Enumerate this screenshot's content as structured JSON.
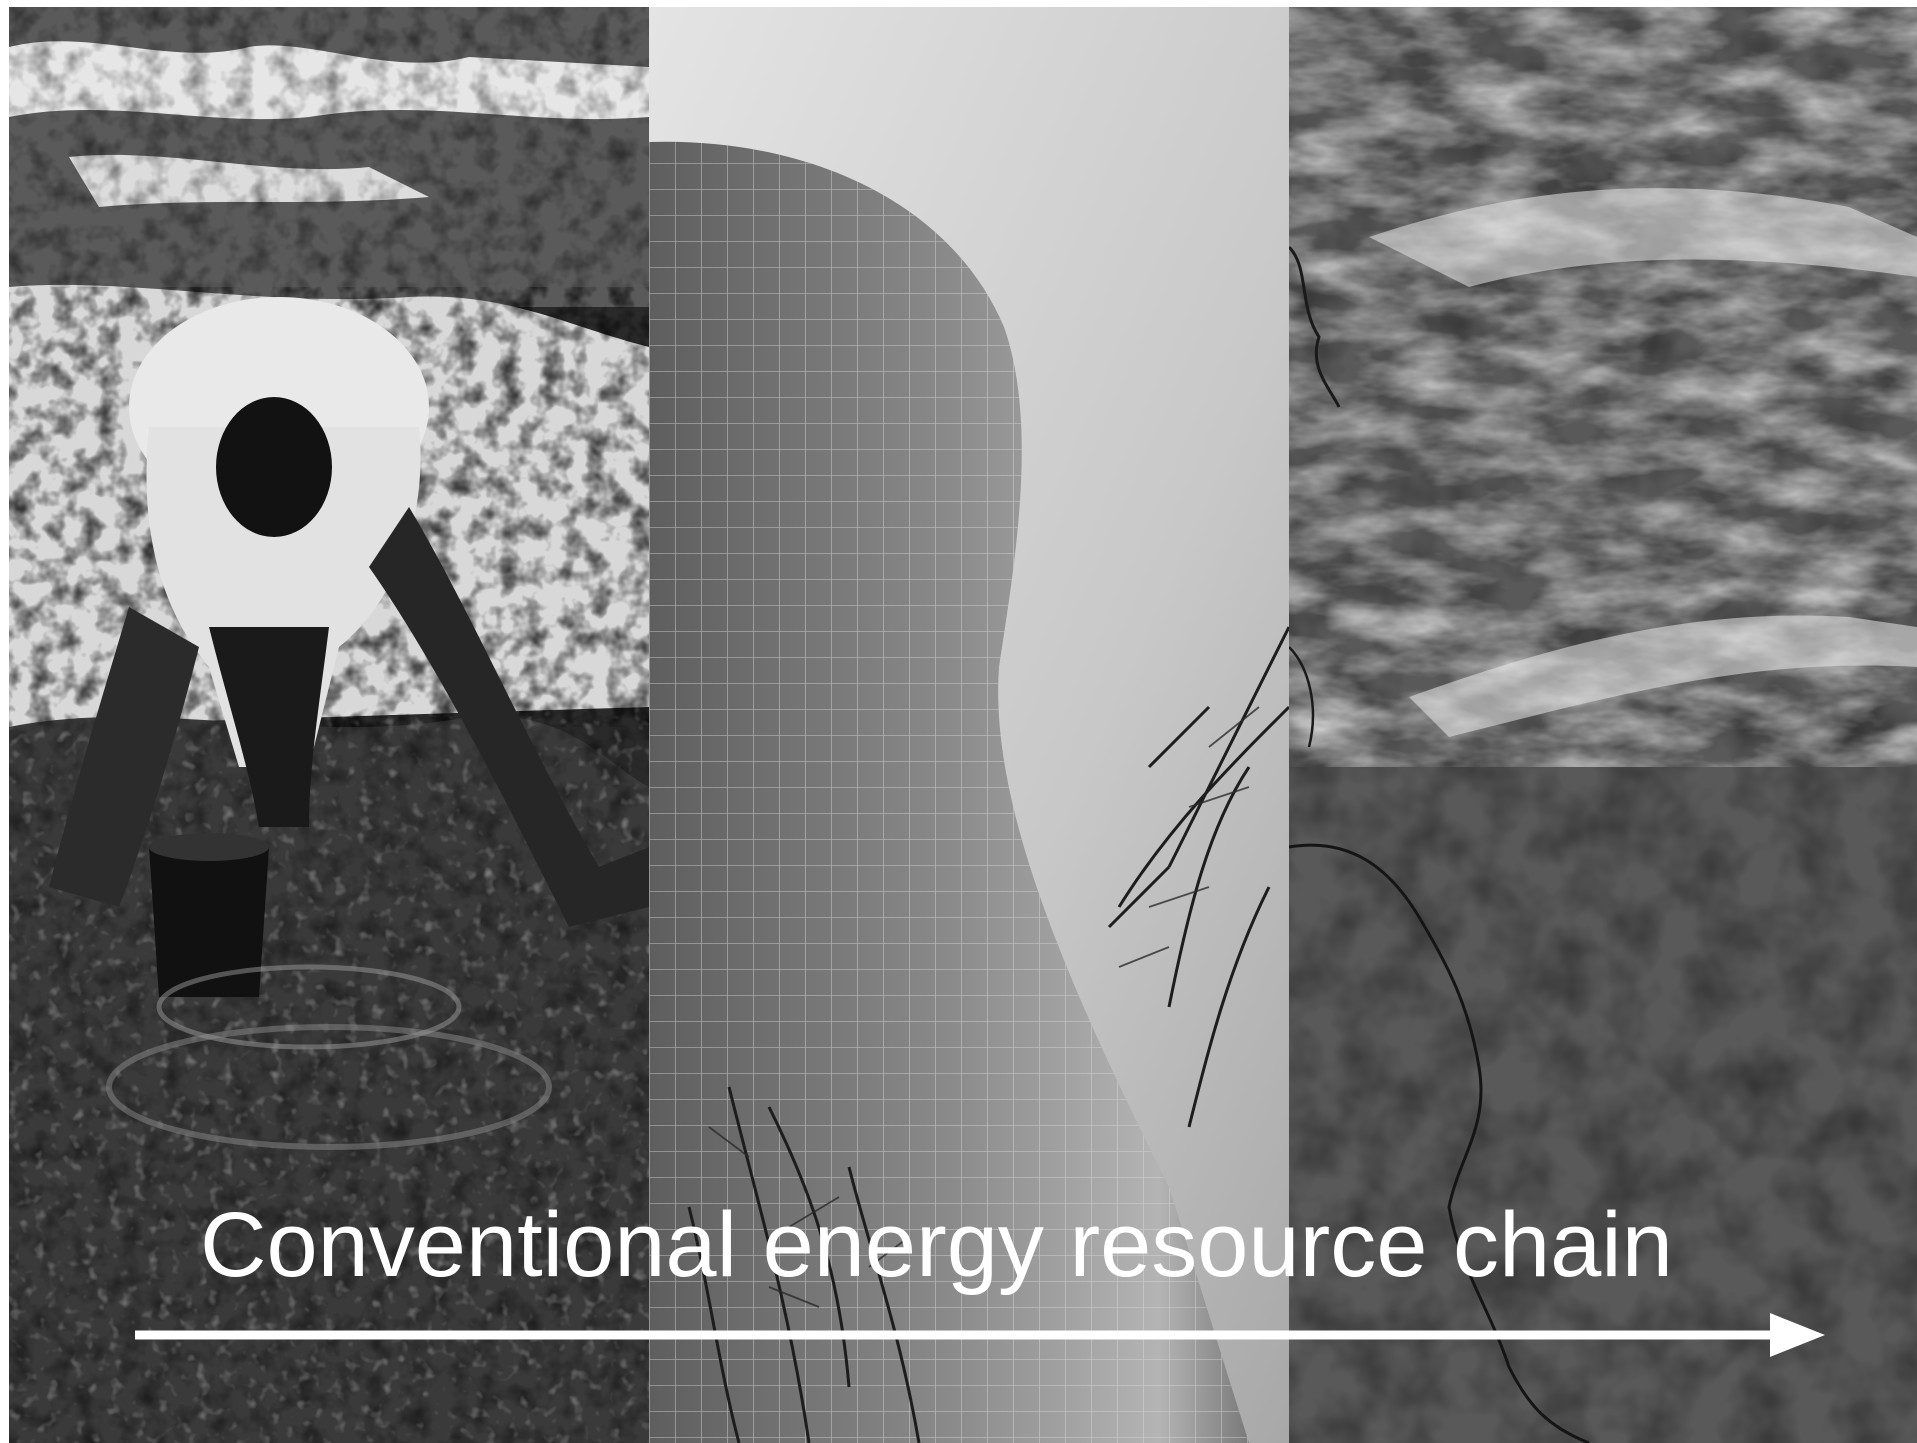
{
  "caption": "Conventional energy resource chain",
  "panels": [
    {
      "subject": "oil-spill-cleanup-worker"
    },
    {
      "subject": "cooling-tower"
    },
    {
      "subject": "satellite-cloud-view"
    }
  ],
  "colors": {
    "caption": "#ffffff",
    "arrow": "#ffffff",
    "background": "#ffffff"
  }
}
